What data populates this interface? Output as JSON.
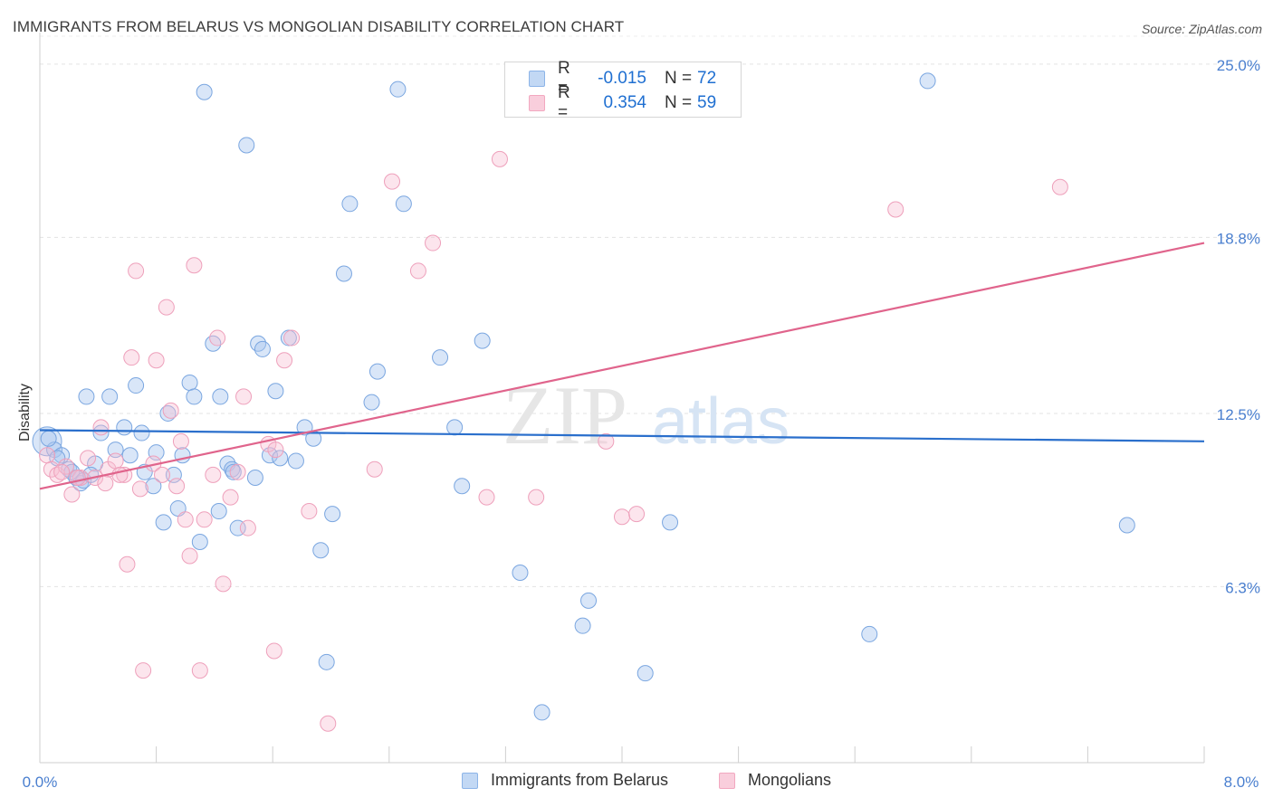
{
  "title": "IMMIGRANTS FROM BELARUS VS MONGOLIAN DISABILITY CORRELATION CHART",
  "source": "Source: ZipAtlas.com",
  "watermark": "ZIPatlas",
  "legend": {
    "series1": {
      "r_label": "R =",
      "r_value": "-0.015",
      "n_label": "N =",
      "n_value": "72"
    },
    "series2": {
      "r_label": "R =",
      "r_value": "0.354",
      "n_label": "N =",
      "n_value": "59"
    }
  },
  "bottom_legend": {
    "series1": "Immigrants from Belarus",
    "series2": "Mongolians"
  },
  "colors": {
    "blue": "#8cb4e8",
    "blue_line": "#2a6fcc",
    "pink": "#f2a8c0",
    "pink_line": "#e0648c",
    "axis_text": "#4a7fcf"
  },
  "chart_data": {
    "type": "scatter",
    "title": "IMMIGRANTS FROM BELARUS VS MONGOLIAN DISABILITY CORRELATION CHART",
    "xlabel": "",
    "ylabel": "Disability",
    "xlim": [
      0,
      8
    ],
    "ylim": [
      0,
      26
    ],
    "x_tick_labels": [
      "0.0%",
      "8.0%"
    ],
    "y_ticks": [
      6.3,
      12.5,
      18.8,
      25.0
    ],
    "y_tick_labels": [
      "6.3%",
      "12.5%",
      "18.8%",
      "25.0%"
    ],
    "series": [
      {
        "name": "Immigrants from Belarus",
        "color": "#8cb4e8",
        "trend": {
          "x": [
            0,
            8
          ],
          "y": [
            11.9,
            11.5
          ]
        },
        "points": [
          [
            0.05,
            11.5
          ],
          [
            0.1,
            11.2
          ],
          [
            0.15,
            11.0
          ],
          [
            0.2,
            10.5
          ],
          [
            0.25,
            10.2
          ],
          [
            0.28,
            10.0
          ],
          [
            0.32,
            13.1
          ],
          [
            0.38,
            10.7
          ],
          [
            0.42,
            11.8
          ],
          [
            0.48,
            13.1
          ],
          [
            0.52,
            11.2
          ],
          [
            0.58,
            12.0
          ],
          [
            0.62,
            11.0
          ],
          [
            0.66,
            13.5
          ],
          [
            0.7,
            11.8
          ],
          [
            0.72,
            10.4
          ],
          [
            0.78,
            9.9
          ],
          [
            0.8,
            11.1
          ],
          [
            0.85,
            8.6
          ],
          [
            0.88,
            12.5
          ],
          [
            0.92,
            10.3
          ],
          [
            0.95,
            9.1
          ],
          [
            0.98,
            11.0
          ],
          [
            1.03,
            13.6
          ],
          [
            1.06,
            13.1
          ],
          [
            1.1,
            7.9
          ],
          [
            1.13,
            24.0
          ],
          [
            1.19,
            15.0
          ],
          [
            1.23,
            9.0
          ],
          [
            1.24,
            13.1
          ],
          [
            1.29,
            10.7
          ],
          [
            1.32,
            10.5
          ],
          [
            1.36,
            8.4
          ],
          [
            1.42,
            22.1
          ],
          [
            1.48,
            10.2
          ],
          [
            1.5,
            15.0
          ],
          [
            1.53,
            14.8
          ],
          [
            1.58,
            11.0
          ],
          [
            1.62,
            13.3
          ],
          [
            1.65,
            10.9
          ],
          [
            1.71,
            15.2
          ],
          [
            1.76,
            10.8
          ],
          [
            1.82,
            12.0
          ],
          [
            1.88,
            11.6
          ],
          [
            1.93,
            7.6
          ],
          [
            1.97,
            3.6
          ],
          [
            2.01,
            8.9
          ],
          [
            2.09,
            17.5
          ],
          [
            2.13,
            20.0
          ],
          [
            2.28,
            12.9
          ],
          [
            2.32,
            14.0
          ],
          [
            2.46,
            24.1
          ],
          [
            2.5,
            20.0
          ],
          [
            2.75,
            14.5
          ],
          [
            2.85,
            12.0
          ],
          [
            2.9,
            9.9
          ],
          [
            3.04,
            15.1
          ],
          [
            3.3,
            6.8
          ],
          [
            3.45,
            1.8
          ],
          [
            3.73,
            4.9
          ],
          [
            3.77,
            5.8
          ],
          [
            4.16,
            3.2
          ],
          [
            4.33,
            8.6
          ],
          [
            5.7,
            4.6
          ],
          [
            6.1,
            24.4
          ],
          [
            7.47,
            8.5
          ],
          [
            0.06,
            11.6
          ],
          [
            0.12,
            10.9
          ],
          [
            0.22,
            10.4
          ],
          [
            0.3,
            10.1
          ],
          [
            1.33,
            10.4
          ],
          [
            0.35,
            10.3
          ]
        ]
      },
      {
        "name": "Mongolians",
        "color": "#f2a8c0",
        "trend": {
          "x": [
            0,
            8
          ],
          "y": [
            9.8,
            18.6
          ]
        },
        "points": [
          [
            0.05,
            11.0
          ],
          [
            0.08,
            10.5
          ],
          [
            0.12,
            10.3
          ],
          [
            0.18,
            10.6
          ],
          [
            0.22,
            9.6
          ],
          [
            0.28,
            10.2
          ],
          [
            0.33,
            10.9
          ],
          [
            0.38,
            10.2
          ],
          [
            0.42,
            12.0
          ],
          [
            0.47,
            10.5
          ],
          [
            0.52,
            10.8
          ],
          [
            0.58,
            10.3
          ],
          [
            0.6,
            7.1
          ],
          [
            0.63,
            14.5
          ],
          [
            0.66,
            17.6
          ],
          [
            0.69,
            9.8
          ],
          [
            0.71,
            3.3
          ],
          [
            0.78,
            10.7
          ],
          [
            0.8,
            14.4
          ],
          [
            0.84,
            10.3
          ],
          [
            0.87,
            16.3
          ],
          [
            0.9,
            12.6
          ],
          [
            0.94,
            9.9
          ],
          [
            0.97,
            11.5
          ],
          [
            1.0,
            8.7
          ],
          [
            1.03,
            7.4
          ],
          [
            1.06,
            17.8
          ],
          [
            1.1,
            3.3
          ],
          [
            1.13,
            8.7
          ],
          [
            1.19,
            10.3
          ],
          [
            1.22,
            15.2
          ],
          [
            1.26,
            6.4
          ],
          [
            1.31,
            9.5
          ],
          [
            1.36,
            10.4
          ],
          [
            1.4,
            13.1
          ],
          [
            1.43,
            8.4
          ],
          [
            1.57,
            11.4
          ],
          [
            1.61,
            4.0
          ],
          [
            1.68,
            14.4
          ],
          [
            1.73,
            15.2
          ],
          [
            1.85,
            9.0
          ],
          [
            1.98,
            1.4
          ],
          [
            2.3,
            10.5
          ],
          [
            2.42,
            20.8
          ],
          [
            2.6,
            17.6
          ],
          [
            2.7,
            18.6
          ],
          [
            3.07,
            9.5
          ],
          [
            3.16,
            21.6
          ],
          [
            3.41,
            9.5
          ],
          [
            3.89,
            11.5
          ],
          [
            4.0,
            8.8
          ],
          [
            4.1,
            8.9
          ],
          [
            5.88,
            19.8
          ],
          [
            7.01,
            20.6
          ],
          [
            0.15,
            10.4
          ],
          [
            0.26,
            10.2
          ],
          [
            0.55,
            10.3
          ],
          [
            0.45,
            10.0
          ],
          [
            1.62,
            11.2
          ]
        ]
      }
    ]
  }
}
